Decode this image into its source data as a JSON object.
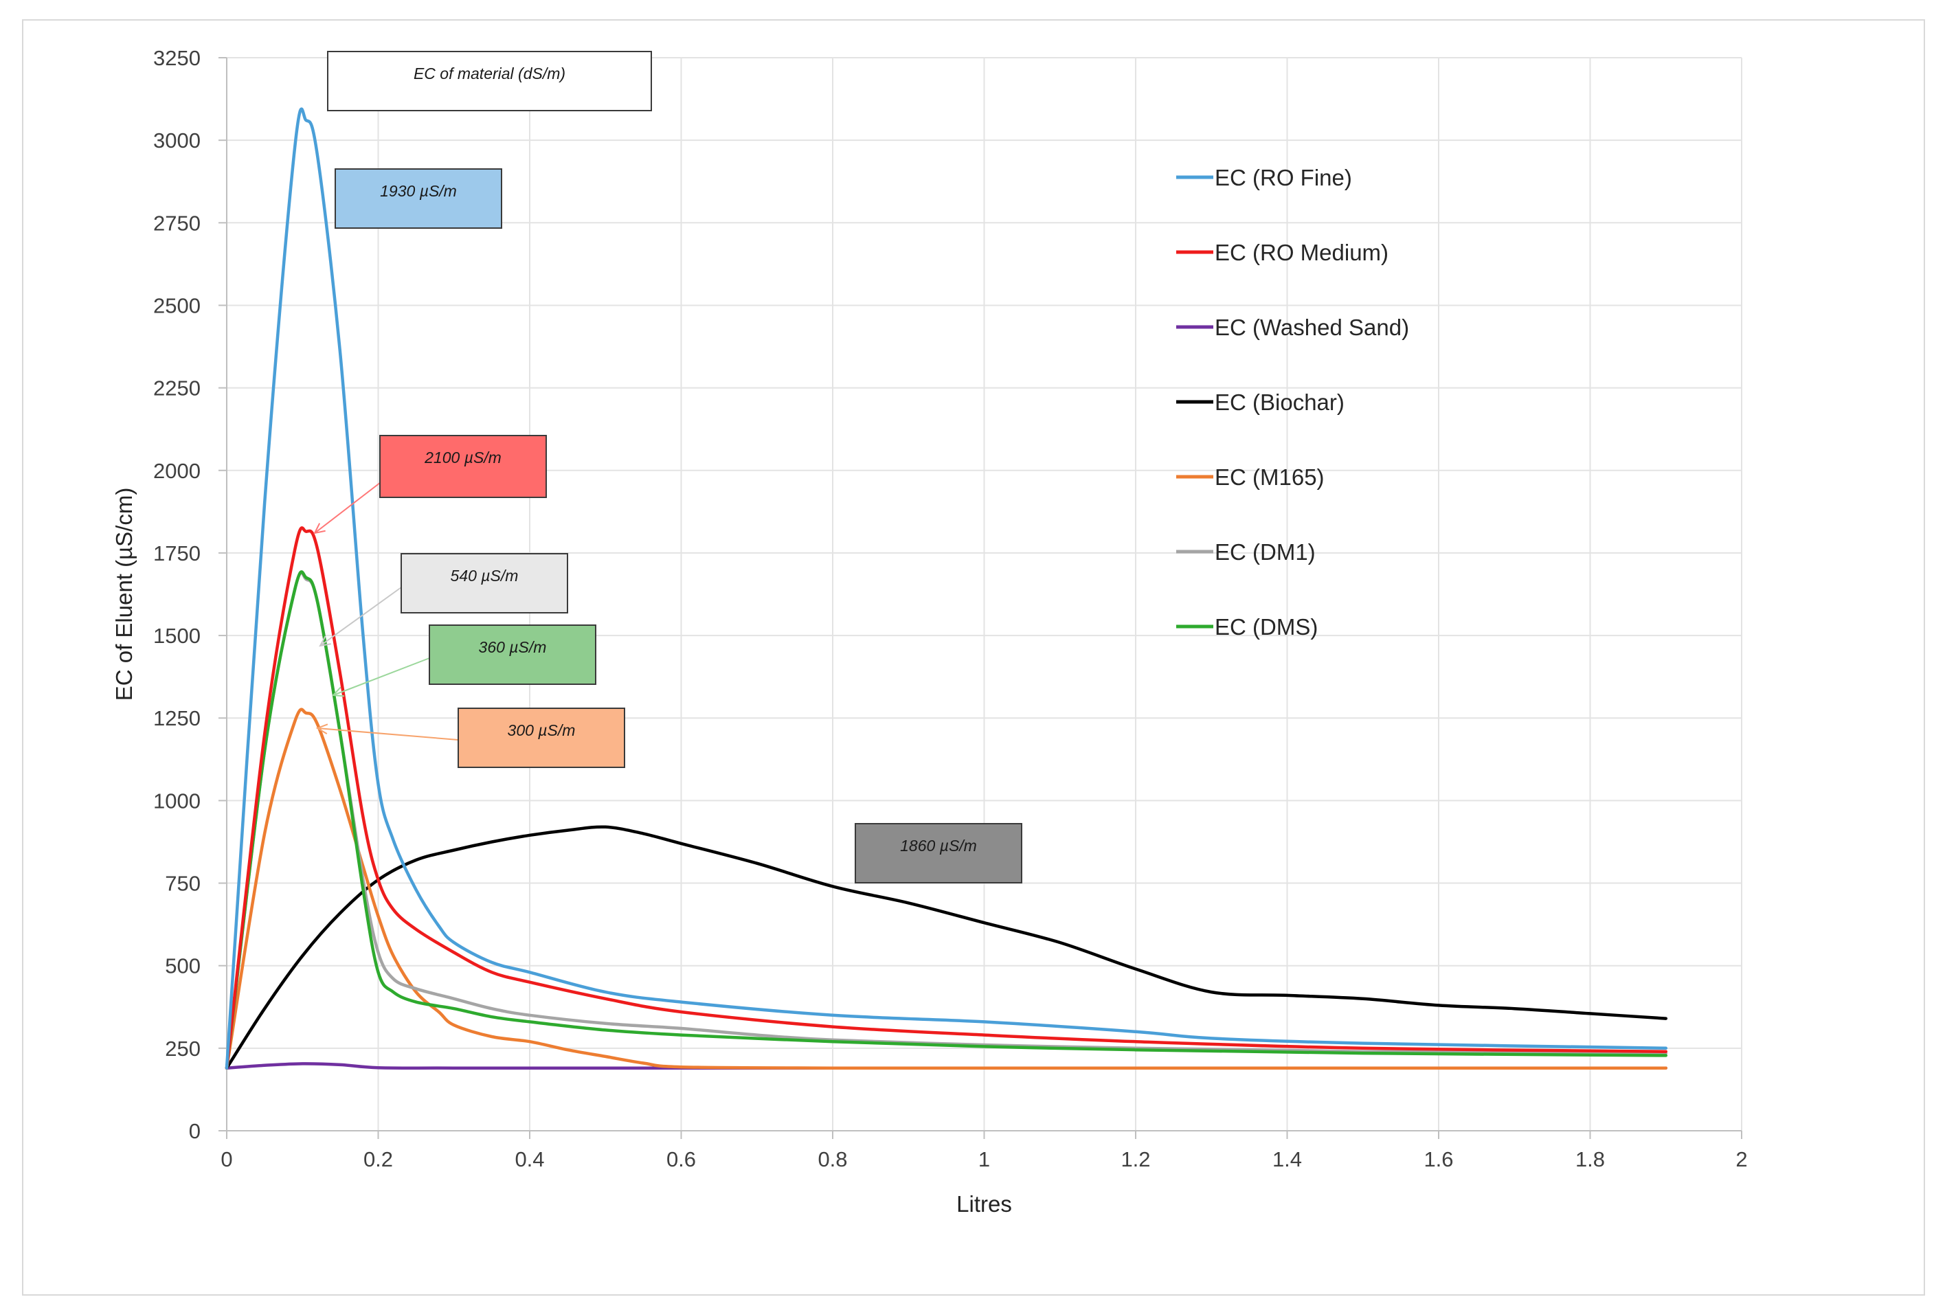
{
  "chart_data": {
    "type": "line",
    "title": "",
    "xlabel": "Litres",
    "ylabel": "EC of Eluent (µS/cm)",
    "xlim": [
      0,
      2
    ],
    "ylim": [
      0,
      3250
    ],
    "x_ticks": [
      "0",
      "0.2",
      "0.4",
      "0.6",
      "0.8",
      "1",
      "1.2",
      "1.4",
      "1.6",
      "1.8",
      "2"
    ],
    "y_ticks": [
      "0",
      "250",
      "500",
      "750",
      "1000",
      "1250",
      "1500",
      "1750",
      "2000",
      "2250",
      "2500",
      "2750",
      "3000",
      "3250"
    ],
    "grid": true,
    "legend_position": "right",
    "series": [
      {
        "name": "EC (RO Fine)",
        "color": "#4a9fd8",
        "x": [
          0,
          0.05,
          0.09,
          0.105,
          0.12,
          0.15,
          0.18,
          0.2,
          0.22,
          0.25,
          0.28,
          0.3,
          0.35,
          0.4,
          0.5,
          0.6,
          0.8,
          1.0,
          1.2,
          1.3,
          1.5,
          1.9
        ],
        "y": [
          190,
          1900,
          2980,
          3060,
          2950,
          2350,
          1500,
          1050,
          880,
          730,
          620,
          570,
          510,
          480,
          420,
          390,
          350,
          330,
          300,
          280,
          265,
          250
        ]
      },
      {
        "name": "EC (RO Medium)",
        "color": "#ee1c1c",
        "x": [
          0,
          0.05,
          0.09,
          0.105,
          0.12,
          0.15,
          0.18,
          0.2,
          0.22,
          0.25,
          0.3,
          0.35,
          0.4,
          0.5,
          0.6,
          0.8,
          1.0,
          1.2,
          1.5,
          1.9
        ],
        "y": [
          190,
          1200,
          1760,
          1815,
          1760,
          1380,
          950,
          760,
          670,
          610,
          540,
          480,
          450,
          400,
          360,
          315,
          290,
          270,
          250,
          240
        ]
      },
      {
        "name": "EC (Washed Sand)",
        "color": "#7030a0",
        "x": [
          0,
          0.05,
          0.1,
          0.15,
          0.2,
          0.3,
          0.6,
          1.0,
          1.5,
          1.9
        ],
        "y": [
          190,
          198,
          203,
          200,
          191,
          190,
          190,
          190,
          190,
          190
        ]
      },
      {
        "name": "EC (Biochar)",
        "color": "#000000",
        "x": [
          0,
          0.05,
          0.1,
          0.15,
          0.2,
          0.25,
          0.3,
          0.35,
          0.4,
          0.45,
          0.5,
          0.55,
          0.6,
          0.7,
          0.8,
          0.9,
          1.0,
          1.1,
          1.2,
          1.3,
          1.4,
          1.5,
          1.6,
          1.7,
          1.8,
          1.9
        ],
        "y": [
          190,
          370,
          530,
          660,
          760,
          820,
          850,
          875,
          895,
          910,
          920,
          900,
          870,
          810,
          740,
          690,
          630,
          570,
          490,
          420,
          410,
          400,
          380,
          370,
          355,
          340
        ]
      },
      {
        "name": "EC (M165)",
        "color": "#ed7d31",
        "x": [
          0,
          0.05,
          0.09,
          0.105,
          0.12,
          0.15,
          0.18,
          0.2,
          0.22,
          0.25,
          0.28,
          0.3,
          0.35,
          0.4,
          0.45,
          0.5,
          0.55,
          0.6,
          0.8,
          1.0,
          1.5,
          1.9
        ],
        "y": [
          190,
          900,
          1240,
          1265,
          1230,
          1030,
          800,
          650,
          530,
          420,
          360,
          320,
          285,
          270,
          245,
          225,
          205,
          193,
          190,
          190,
          190,
          190
        ]
      },
      {
        "name": "EC (DM1)",
        "color": "#a5a5a5",
        "x": [
          0,
          0.05,
          0.09,
          0.105,
          0.12,
          0.15,
          0.18,
          0.2,
          0.22,
          0.25,
          0.3,
          0.35,
          0.4,
          0.5,
          0.6,
          0.7,
          0.8,
          1.0,
          1.2,
          1.5,
          1.9
        ],
        "y": [
          190,
          1150,
          1640,
          1670,
          1600,
          1200,
          760,
          540,
          460,
          430,
          400,
          370,
          350,
          325,
          310,
          290,
          275,
          260,
          250,
          240,
          235
        ]
      },
      {
        "name": "EC (DMS)",
        "color": "#2eaa2e",
        "x": [
          0,
          0.05,
          0.09,
          0.105,
          0.12,
          0.15,
          0.18,
          0.2,
          0.22,
          0.25,
          0.3,
          0.35,
          0.4,
          0.5,
          0.6,
          0.8,
          1.0,
          1.2,
          1.5,
          1.9
        ],
        "y": [
          190,
          1150,
          1640,
          1675,
          1600,
          1200,
          730,
          480,
          420,
          390,
          370,
          345,
          330,
          305,
          290,
          270,
          255,
          245,
          235,
          228
        ]
      }
    ],
    "annotations": [
      {
        "text": "EC of material (dS/m)",
        "fill": "#ffffff",
        "target_series": null
      },
      {
        "text": "1930 µS/m",
        "fill": "#9dc9eb",
        "target_series": "EC (RO Fine)"
      },
      {
        "text": "2100 µS/m",
        "fill": "#ff6b6b",
        "target_series": "EC (RO Medium)"
      },
      {
        "text": "540 µS/m",
        "fill": "#e8e8e8",
        "target_series": "EC (DM1)"
      },
      {
        "text": "360 µS/m",
        "fill": "#8fcc8f",
        "target_series": "EC (DMS)"
      },
      {
        "text": "300 µS/m",
        "fill": "#fbb58a",
        "target_series": "EC (M165)"
      },
      {
        "text": "1860 µS/m",
        "fill": "#8c8c8c",
        "target_series": "EC (Biochar)"
      }
    ]
  }
}
